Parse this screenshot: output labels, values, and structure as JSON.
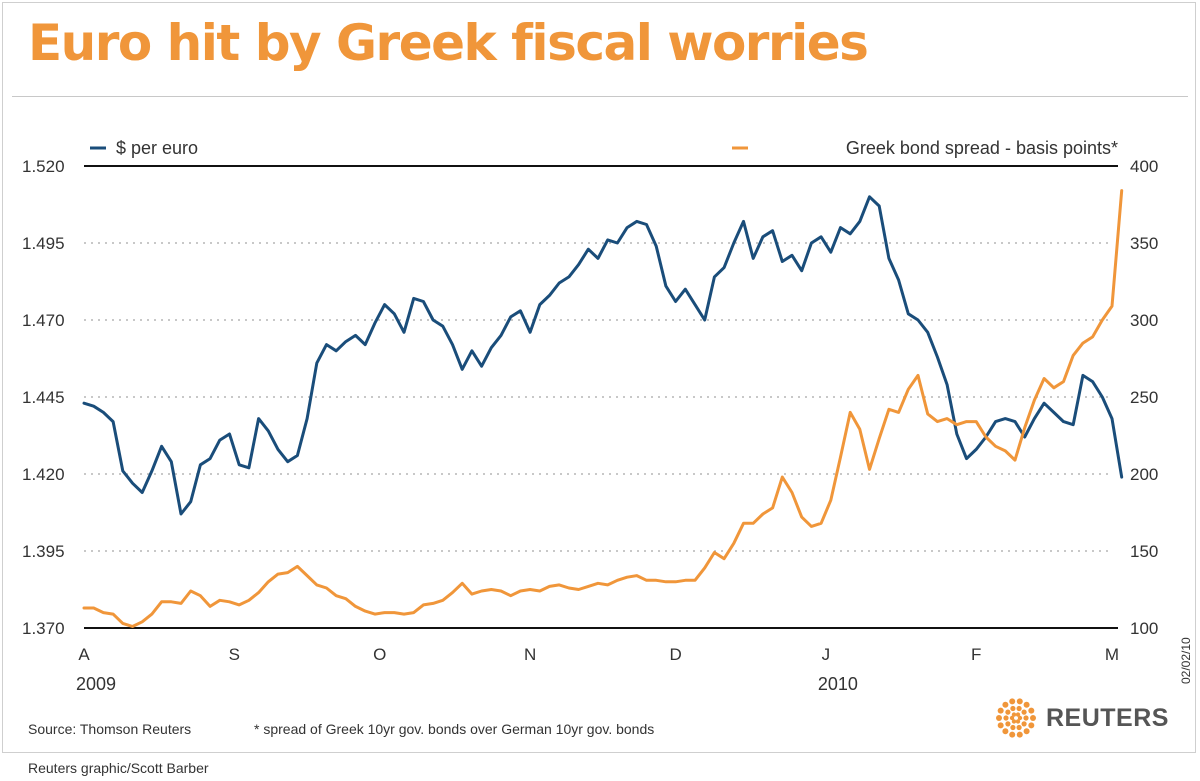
{
  "header": {
    "title": "Euro hit by Greek fiscal worries"
  },
  "footer": {
    "source": "Source: Thomson Reuters",
    "note": "* spread of Greek 10yr gov. bonds over German 10yr gov. bonds",
    "credit": "Reuters graphic/Scott Barber",
    "logo_text": "REUTERS",
    "date_stamp": "02/02/10"
  },
  "colors": {
    "title": "#f0963a",
    "usd_series": "#1a4d7a",
    "spread_series": "#f0963a"
  },
  "chart_data": {
    "type": "line",
    "x_ticks": [
      {
        "label": "A",
        "year": "2009",
        "date": "2009-08-01"
      },
      {
        "label": "S",
        "year": "",
        "date": "2009-09-01"
      },
      {
        "label": "O",
        "year": "",
        "date": "2009-10-01"
      },
      {
        "label": "N",
        "year": "",
        "date": "2009-11-01"
      },
      {
        "label": "D",
        "year": "",
        "date": "2009-12-01"
      },
      {
        "label": "J",
        "year": "2010",
        "date": "2010-01-01"
      },
      {
        "label": "F",
        "year": "",
        "date": "2010-02-01"
      },
      {
        "label": "M",
        "year": "",
        "date": "2010-03-01"
      }
    ],
    "x_range": [
      "2009-08-01",
      "2010-03-01"
    ],
    "left_axis": {
      "range": [
        1.37,
        1.52
      ],
      "ticks": [
        "1.370",
        "1.395",
        "1.420",
        "1.445",
        "1.470",
        "1.495",
        "1.520"
      ]
    },
    "right_axis": {
      "range": [
        100,
        400
      ],
      "ticks": [
        "100",
        "150",
        "200",
        "250",
        "300",
        "350",
        "400"
      ]
    },
    "grid": "horizontal dotted",
    "legend_placement": "top",
    "series": [
      {
        "name": "$ per euro",
        "axis": "left",
        "color": "#1a4d7a",
        "points": [
          [
            "2009-08-01",
            1.443
          ],
          [
            "2009-08-03",
            1.442
          ],
          [
            "2009-08-05",
            1.44
          ],
          [
            "2009-08-07",
            1.437
          ],
          [
            "2009-08-09",
            1.421
          ],
          [
            "2009-08-11",
            1.417
          ],
          [
            "2009-08-13",
            1.414
          ],
          [
            "2009-08-15",
            1.421
          ],
          [
            "2009-08-17",
            1.429
          ],
          [
            "2009-08-19",
            1.424
          ],
          [
            "2009-08-21",
            1.407
          ],
          [
            "2009-08-23",
            1.411
          ],
          [
            "2009-08-25",
            1.423
          ],
          [
            "2009-08-27",
            1.425
          ],
          [
            "2009-08-29",
            1.431
          ],
          [
            "2009-08-31",
            1.433
          ],
          [
            "2009-09-02",
            1.423
          ],
          [
            "2009-09-04",
            1.422
          ],
          [
            "2009-09-06",
            1.438
          ],
          [
            "2009-09-08",
            1.434
          ],
          [
            "2009-09-10",
            1.428
          ],
          [
            "2009-09-12",
            1.424
          ],
          [
            "2009-09-14",
            1.426
          ],
          [
            "2009-09-16",
            1.438
          ],
          [
            "2009-09-18",
            1.456
          ],
          [
            "2009-09-20",
            1.462
          ],
          [
            "2009-09-22",
            1.46
          ],
          [
            "2009-09-24",
            1.463
          ],
          [
            "2009-09-26",
            1.465
          ],
          [
            "2009-09-28",
            1.462
          ],
          [
            "2009-09-30",
            1.469
          ],
          [
            "2009-10-02",
            1.475
          ],
          [
            "2009-10-04",
            1.472
          ],
          [
            "2009-10-06",
            1.466
          ],
          [
            "2009-10-08",
            1.477
          ],
          [
            "2009-10-10",
            1.476
          ],
          [
            "2009-10-12",
            1.47
          ],
          [
            "2009-10-14",
            1.468
          ],
          [
            "2009-10-16",
            1.462
          ],
          [
            "2009-10-18",
            1.454
          ],
          [
            "2009-10-20",
            1.46
          ],
          [
            "2009-10-22",
            1.455
          ],
          [
            "2009-10-24",
            1.461
          ],
          [
            "2009-10-26",
            1.465
          ],
          [
            "2009-10-28",
            1.471
          ],
          [
            "2009-10-30",
            1.473
          ],
          [
            "2009-11-01",
            1.466
          ],
          [
            "2009-11-03",
            1.475
          ],
          [
            "2009-11-05",
            1.478
          ],
          [
            "2009-11-07",
            1.482
          ],
          [
            "2009-11-09",
            1.484
          ],
          [
            "2009-11-11",
            1.488
          ],
          [
            "2009-11-13",
            1.493
          ],
          [
            "2009-11-15",
            1.49
          ],
          [
            "2009-11-17",
            1.496
          ],
          [
            "2009-11-19",
            1.495
          ],
          [
            "2009-11-21",
            1.5
          ],
          [
            "2009-11-23",
            1.502
          ],
          [
            "2009-11-25",
            1.501
          ],
          [
            "2009-11-27",
            1.494
          ],
          [
            "2009-11-29",
            1.481
          ],
          [
            "2009-12-01",
            1.476
          ],
          [
            "2009-12-03",
            1.48
          ],
          [
            "2009-12-05",
            1.475
          ],
          [
            "2009-12-07",
            1.47
          ],
          [
            "2009-12-09",
            1.484
          ],
          [
            "2009-12-11",
            1.487
          ],
          [
            "2009-12-13",
            1.495
          ],
          [
            "2009-12-15",
            1.502
          ],
          [
            "2009-12-17",
            1.49
          ],
          [
            "2009-12-19",
            1.497
          ],
          [
            "2009-12-21",
            1.499
          ],
          [
            "2009-12-23",
            1.489
          ],
          [
            "2009-12-25",
            1.491
          ],
          [
            "2009-12-27",
            1.486
          ],
          [
            "2009-12-29",
            1.495
          ],
          [
            "2009-12-31",
            1.497
          ],
          [
            "2010-01-02",
            1.492
          ],
          [
            "2010-01-04",
            1.5
          ],
          [
            "2010-01-06",
            1.498
          ],
          [
            "2010-01-08",
            1.502
          ],
          [
            "2010-01-10",
            1.51
          ],
          [
            "2010-01-12",
            1.507
          ],
          [
            "2010-01-14",
            1.49
          ],
          [
            "2010-01-16",
            1.483
          ],
          [
            "2010-01-18",
            1.472
          ],
          [
            "2010-01-20",
            1.47
          ],
          [
            "2010-01-22",
            1.466
          ],
          [
            "2010-01-24",
            1.458
          ],
          [
            "2010-01-26",
            1.449
          ],
          [
            "2010-01-28",
            1.433
          ],
          [
            "2010-01-30",
            1.425
          ],
          [
            "2010-02-01",
            1.428
          ],
          [
            "2010-02-03",
            1.432
          ],
          [
            "2010-02-05",
            1.437
          ],
          [
            "2010-02-07",
            1.438
          ],
          [
            "2010-02-09",
            1.437
          ],
          [
            "2010-02-11",
            1.432
          ],
          [
            "2010-02-13",
            1.438
          ],
          [
            "2010-02-15",
            1.443
          ],
          [
            "2010-02-17",
            1.44
          ],
          [
            "2010-02-19",
            1.437
          ],
          [
            "2010-02-21",
            1.436
          ],
          [
            "2010-02-23",
            1.452
          ],
          [
            "2010-02-25",
            1.45
          ],
          [
            "2010-02-27",
            1.445
          ],
          [
            "2010-03-01",
            1.438
          ],
          [
            "2010-03-03",
            1.419
          ]
        ]
      },
      {
        "name": "Greek bond spread - basis points*",
        "axis": "right",
        "color": "#f0963a",
        "points": [
          [
            "2009-08-01",
            113
          ],
          [
            "2009-08-03",
            113
          ],
          [
            "2009-08-05",
            110
          ],
          [
            "2009-08-07",
            109
          ],
          [
            "2009-08-09",
            103
          ],
          [
            "2009-08-11",
            101
          ],
          [
            "2009-08-13",
            104
          ],
          [
            "2009-08-15",
            109
          ],
          [
            "2009-08-17",
            117
          ],
          [
            "2009-08-19",
            117
          ],
          [
            "2009-08-21",
            116
          ],
          [
            "2009-08-23",
            124
          ],
          [
            "2009-08-25",
            121
          ],
          [
            "2009-08-27",
            114
          ],
          [
            "2009-08-29",
            118
          ],
          [
            "2009-08-31",
            117
          ],
          [
            "2009-09-02",
            115
          ],
          [
            "2009-09-04",
            118
          ],
          [
            "2009-09-06",
            123
          ],
          [
            "2009-09-08",
            130
          ],
          [
            "2009-09-10",
            135
          ],
          [
            "2009-09-12",
            136
          ],
          [
            "2009-09-14",
            140
          ],
          [
            "2009-09-16",
            134
          ],
          [
            "2009-09-18",
            128
          ],
          [
            "2009-09-20",
            126
          ],
          [
            "2009-09-22",
            121
          ],
          [
            "2009-09-24",
            119
          ],
          [
            "2009-09-26",
            114
          ],
          [
            "2009-09-28",
            111
          ],
          [
            "2009-09-30",
            109
          ],
          [
            "2009-10-02",
            110
          ],
          [
            "2009-10-04",
            110
          ],
          [
            "2009-10-06",
            109
          ],
          [
            "2009-10-08",
            110
          ],
          [
            "2009-10-10",
            115
          ],
          [
            "2009-10-12",
            116
          ],
          [
            "2009-10-14",
            118
          ],
          [
            "2009-10-16",
            123
          ],
          [
            "2009-10-18",
            129
          ],
          [
            "2009-10-20",
            122
          ],
          [
            "2009-10-22",
            124
          ],
          [
            "2009-10-24",
            125
          ],
          [
            "2009-10-26",
            124
          ],
          [
            "2009-10-28",
            121
          ],
          [
            "2009-10-30",
            124
          ],
          [
            "2009-11-01",
            125
          ],
          [
            "2009-11-03",
            124
          ],
          [
            "2009-11-05",
            127
          ],
          [
            "2009-11-07",
            128
          ],
          [
            "2009-11-09",
            126
          ],
          [
            "2009-11-11",
            125
          ],
          [
            "2009-11-13",
            127
          ],
          [
            "2009-11-15",
            129
          ],
          [
            "2009-11-17",
            128
          ],
          [
            "2009-11-19",
            131
          ],
          [
            "2009-11-21",
            133
          ],
          [
            "2009-11-23",
            134
          ],
          [
            "2009-11-25",
            131
          ],
          [
            "2009-11-27",
            131
          ],
          [
            "2009-11-29",
            130
          ],
          [
            "2009-12-01",
            130
          ],
          [
            "2009-12-03",
            131
          ],
          [
            "2009-12-05",
            131
          ],
          [
            "2009-12-07",
            139
          ],
          [
            "2009-12-09",
            149
          ],
          [
            "2009-12-11",
            145
          ],
          [
            "2009-12-13",
            155
          ],
          [
            "2009-12-15",
            168
          ],
          [
            "2009-12-17",
            168
          ],
          [
            "2009-12-19",
            174
          ],
          [
            "2009-12-21",
            178
          ],
          [
            "2009-12-23",
            198
          ],
          [
            "2009-12-25",
            188
          ],
          [
            "2009-12-27",
            172
          ],
          [
            "2009-12-29",
            166
          ],
          [
            "2009-12-31",
            168
          ],
          [
            "2010-01-02",
            183
          ],
          [
            "2010-01-04",
            211
          ],
          [
            "2010-01-06",
            240
          ],
          [
            "2010-01-08",
            229
          ],
          [
            "2010-01-10",
            203
          ],
          [
            "2010-01-12",
            223
          ],
          [
            "2010-01-14",
            242
          ],
          [
            "2010-01-16",
            240
          ],
          [
            "2010-01-18",
            255
          ],
          [
            "2010-01-20",
            264
          ],
          [
            "2010-01-22",
            239
          ],
          [
            "2010-01-24",
            234
          ],
          [
            "2010-01-26",
            236
          ],
          [
            "2010-01-28",
            232
          ],
          [
            "2010-01-30",
            234
          ],
          [
            "2010-02-01",
            234
          ],
          [
            "2010-02-03",
            224
          ],
          [
            "2010-02-05",
            218
          ],
          [
            "2010-02-07",
            215
          ],
          [
            "2010-02-09",
            209
          ],
          [
            "2010-02-11",
            230
          ],
          [
            "2010-02-13",
            248
          ],
          [
            "2010-02-15",
            262
          ],
          [
            "2010-02-17",
            256
          ],
          [
            "2010-02-19",
            260
          ],
          [
            "2010-02-21",
            277
          ],
          [
            "2010-02-23",
            285
          ],
          [
            "2010-02-25",
            289
          ],
          [
            "2010-02-27",
            300
          ],
          [
            "2010-03-01",
            309
          ],
          [
            "2010-03-03",
            384
          ]
        ]
      }
    ]
  }
}
